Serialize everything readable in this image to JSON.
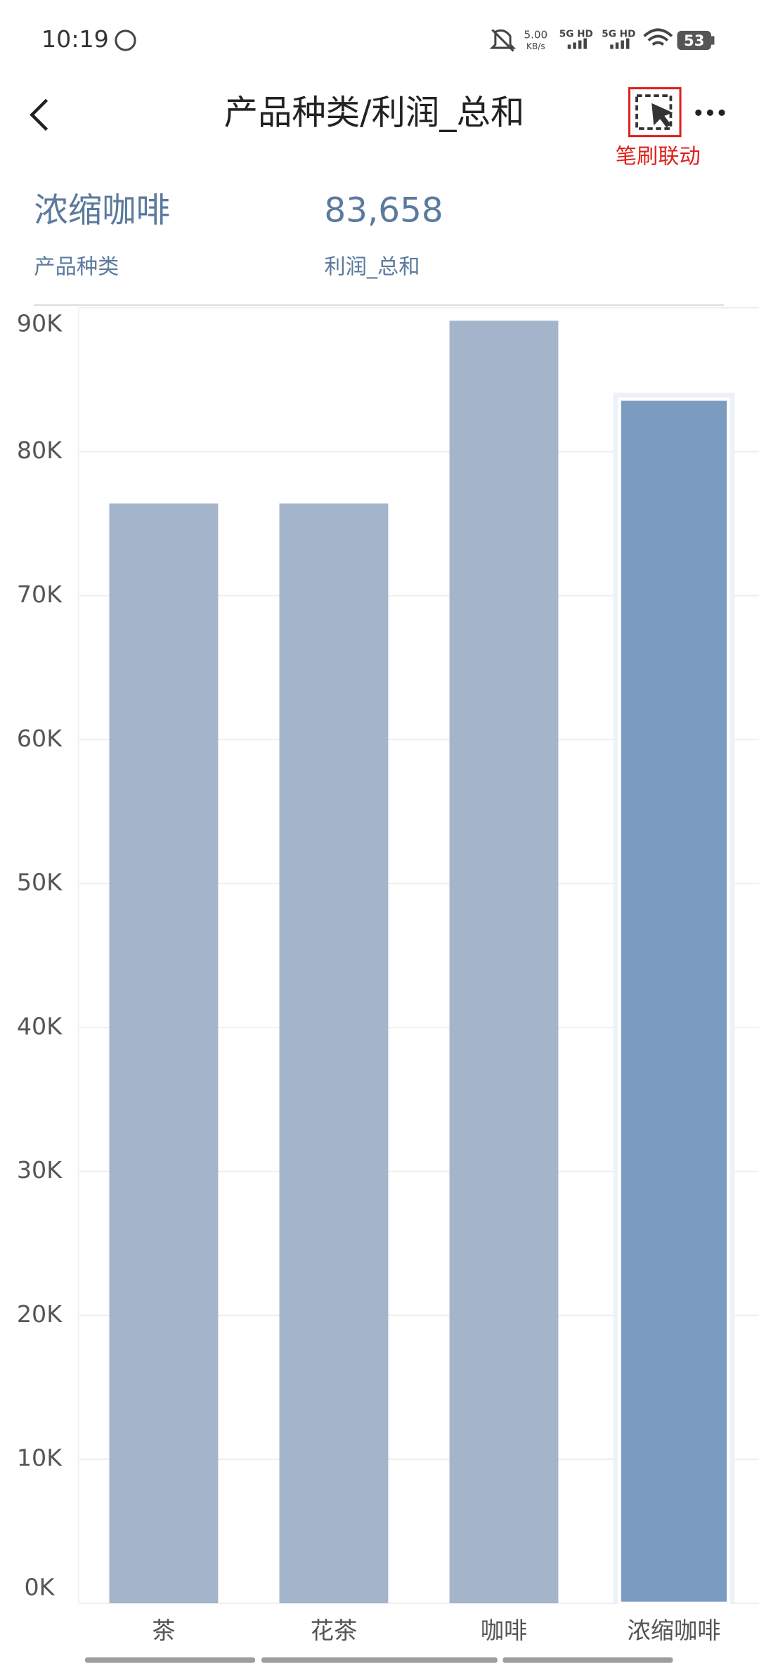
{
  "status": {
    "time": "10:19",
    "speed": "5.00",
    "speed_unit": "KB/s",
    "sim1": "5G HD",
    "sim2": "5G HD",
    "battery": "53"
  },
  "header": {
    "title": "产品种类/利润_总和",
    "brush_label": "笔刷联动"
  },
  "selection": {
    "category": "浓缩咖啡",
    "category_label": "产品种类",
    "value": "83,658",
    "value_label": "利润_总和"
  },
  "chart_data": {
    "type": "bar",
    "categories": [
      "茶",
      "花茶",
      "咖啡",
      "浓缩咖啡"
    ],
    "values": [
      76400,
      76400,
      89100,
      83658
    ],
    "color": "#a4b5cb",
    "highlight_color": "#7b9cc0",
    "highlight_index": 3,
    "ylim": [
      0,
      90000
    ],
    "yticks": [
      {
        "value": 0,
        "label": "0K"
      },
      {
        "value": 10000,
        "label": "10K"
      },
      {
        "value": 20000,
        "label": "20K"
      },
      {
        "value": 30000,
        "label": "30K"
      },
      {
        "value": 40000,
        "label": "40K"
      },
      {
        "value": 50000,
        "label": "50K"
      },
      {
        "value": 60000,
        "label": "60K"
      },
      {
        "value": 70000,
        "label": "70K"
      },
      {
        "value": 80000,
        "label": "80K"
      },
      {
        "value": 90000,
        "label": "90K"
      }
    ],
    "grid": true
  }
}
